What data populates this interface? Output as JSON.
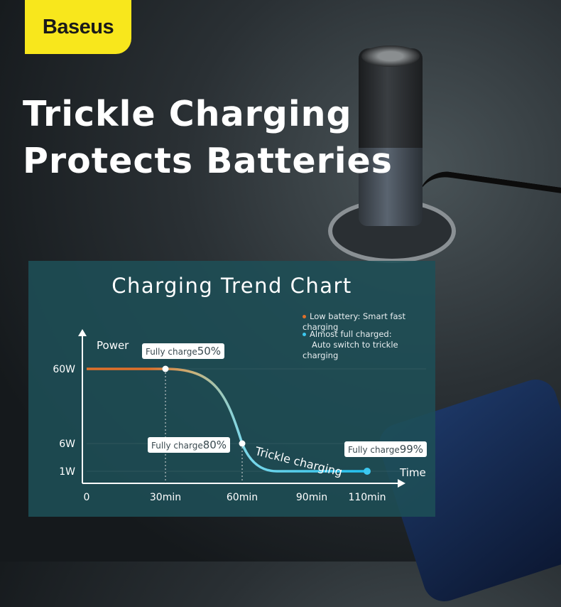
{
  "brand": {
    "logo": "Baseus",
    "color": "#f8e71c"
  },
  "headline": {
    "line1": "Trickle Charging",
    "line2": "Protects Batteries"
  },
  "chart_data": {
    "type": "line",
    "title": "Charging Trend Chart",
    "ylabel": "Power",
    "xlabel": "Time",
    "x_ticks": [
      "0",
      "30min",
      "60min",
      "90min",
      "110min"
    ],
    "y_ticks": [
      "60W",
      "6W",
      "1W"
    ],
    "series": [
      {
        "points": [
          [
            0,
            60
          ],
          [
            30,
            60
          ],
          [
            60,
            6
          ],
          [
            75,
            1
          ],
          [
            110,
            1
          ]
        ]
      }
    ],
    "legend": [
      {
        "text": "Low battery: Smart fast charging",
        "color": "#e0702a"
      },
      {
        "text": "Almost full charged:",
        "text2": "Auto switch to trickle charging",
        "color": "#3cc8f0"
      }
    ],
    "annotations": [
      {
        "prefix": "Fully charge",
        "value": "50%",
        "x": 30,
        "y": 60
      },
      {
        "prefix": "Fully charge",
        "value": "80%",
        "x": 60,
        "y": 6
      },
      {
        "prefix": "Fully charge",
        "value": "99%",
        "x": 110,
        "y": 1
      },
      {
        "text": "Trickle charging"
      }
    ],
    "colors": {
      "fast": "#e0702a",
      "trickle": "#3cc8f0"
    },
    "grid": true,
    "legend_position": "top-right"
  }
}
